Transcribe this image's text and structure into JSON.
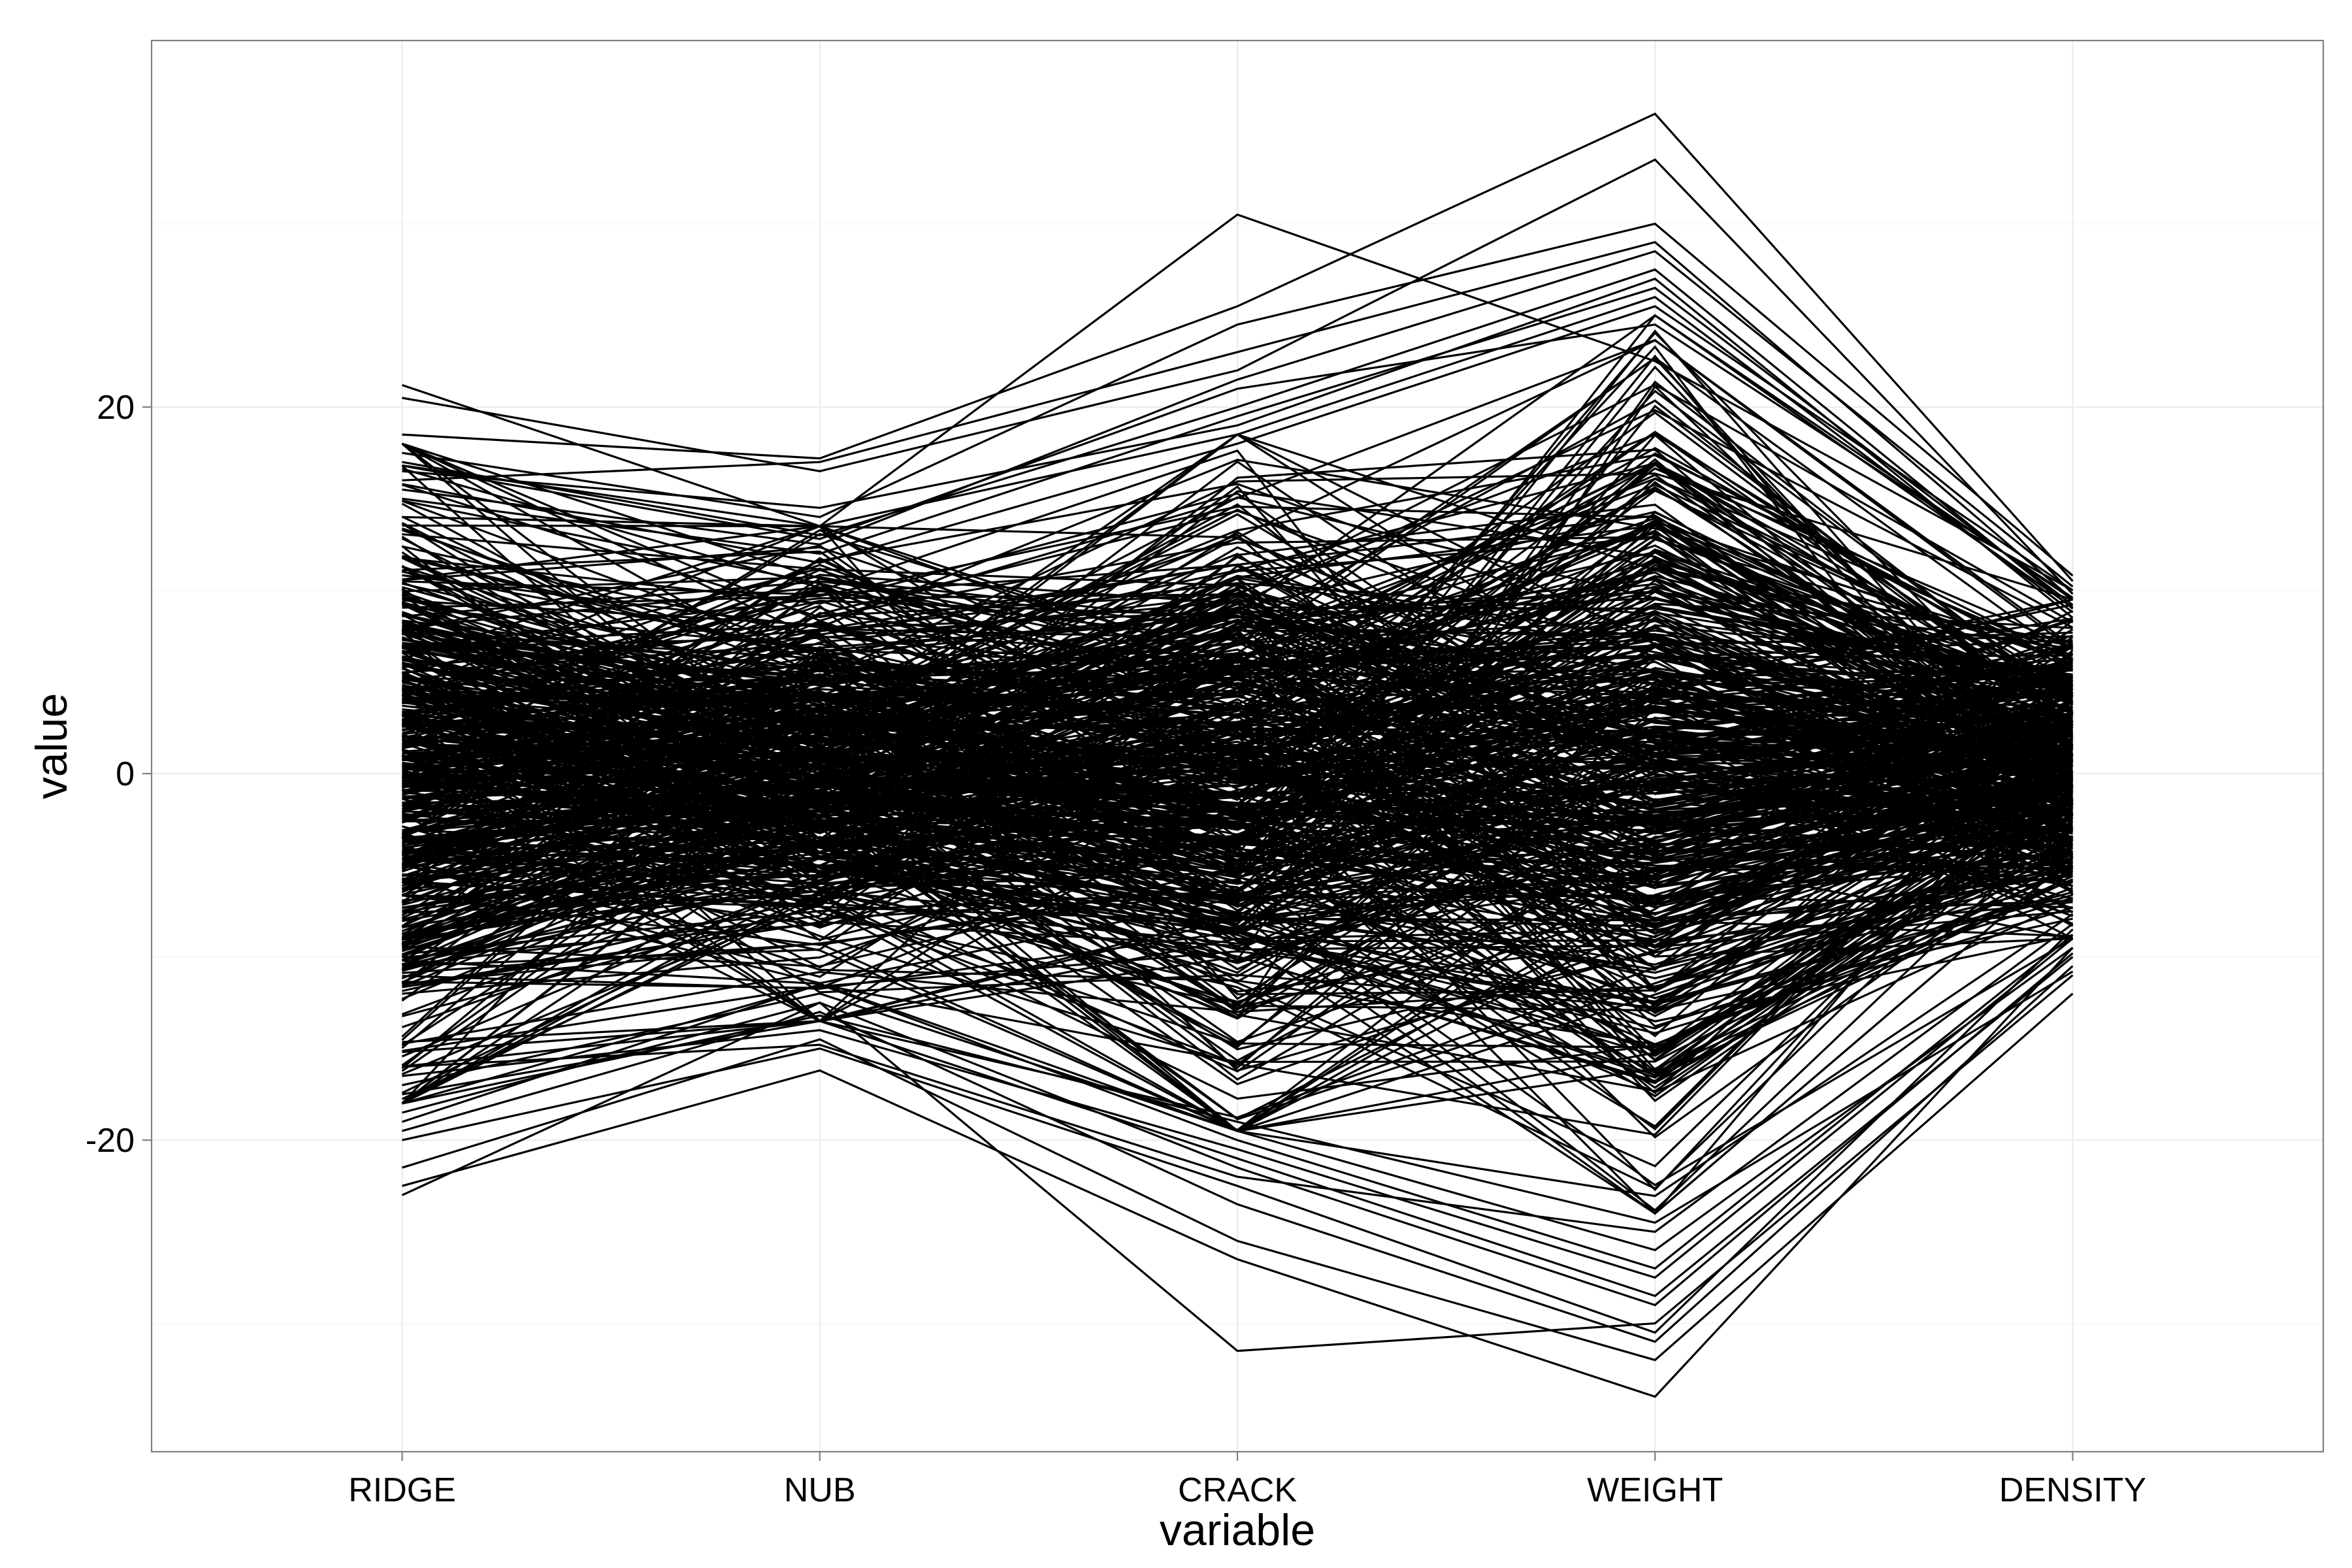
{
  "chart_data": {
    "type": "line",
    "subtype": "parallel-coordinates",
    "xlabel": "variable",
    "ylabel": "value",
    "categories": [
      "RIDGE",
      "NUB",
      "CRACK",
      "WEIGHT",
      "DENSITY"
    ],
    "ylim": [
      -37,
      40
    ],
    "y_ticks": [
      -20,
      0,
      20
    ],
    "y_tick_labels": [
      "-20",
      "0",
      "20"
    ],
    "grid": true,
    "line_color": "#000000",
    "envelope": {
      "upper": [
        18,
        13.5,
        18.5,
        25,
        9.5
      ],
      "lower": [
        -18,
        -13.5,
        -19.5,
        -24,
        -9
      ]
    },
    "series": [
      {
        "values": [
          21.2,
          13.5,
          30.5,
          22.5,
          10.0
        ]
      },
      {
        "values": [
          18.5,
          17.2,
          25.5,
          36.0,
          10.5
        ]
      },
      {
        "values": [
          20.5,
          16.5,
          22.0,
          33.5,
          9.8
        ]
      },
      {
        "values": [
          17.5,
          14.0,
          24.5,
          30.0,
          10.8
        ]
      },
      {
        "values": [
          16.0,
          17.0,
          23.0,
          29.0,
          9.5
        ]
      },
      {
        "values": [
          15.5,
          12.5,
          21.5,
          28.5,
          10.2
        ]
      },
      {
        "values": [
          17.0,
          13.0,
          20.0,
          27.5,
          9.0
        ]
      },
      {
        "values": [
          16.5,
          14.5,
          19.0,
          27.0,
          8.5
        ]
      },
      {
        "values": [
          15.0,
          12.0,
          19.5,
          26.5,
          9.2
        ]
      },
      {
        "values": [
          14.0,
          13.5,
          18.5,
          26.0,
          8.8
        ]
      },
      {
        "values": [
          15.8,
          11.5,
          18.0,
          25.5,
          10.0
        ]
      },
      {
        "values": [
          16.8,
          12.8,
          21.0,
          24.5,
          9.6
        ]
      },
      {
        "values": [
          -23.0,
          -12.5,
          -31.5,
          -30.0,
          -11.0
        ]
      },
      {
        "values": [
          -22.5,
          -16.2,
          -26.5,
          -34.0,
          -9.5
        ]
      },
      {
        "values": [
          -21.5,
          -14.5,
          -25.5,
          -32.0,
          -12.0
        ]
      },
      {
        "values": [
          -19.5,
          -13.0,
          -23.5,
          -31.0,
          -10.5
        ]
      },
      {
        "values": [
          -20.0,
          -15.0,
          -22.5,
          -30.5,
          -8.5
        ]
      },
      {
        "values": [
          -18.5,
          -12.5,
          -21.5,
          -29.0,
          -9.8
        ]
      },
      {
        "values": [
          -17.5,
          -13.5,
          -21.0,
          -28.5,
          -10.0
        ]
      },
      {
        "values": [
          -16.5,
          -14.0,
          -20.5,
          -27.5,
          -9.0
        ]
      },
      {
        "values": [
          -19.0,
          -11.5,
          -20.0,
          -27.0,
          -8.8
        ]
      },
      {
        "values": [
          -17.0,
          -12.0,
          -19.5,
          -26.0,
          -9.5
        ]
      },
      {
        "values": [
          -16.0,
          -14.8,
          -22.0,
          -25.0,
          -8.2
        ]
      },
      {
        "values": [
          -18.0,
          -13.2,
          -19.0,
          -24.5,
          -10.8
        ]
      }
    ],
    "bundle_line_count": 520
  }
}
